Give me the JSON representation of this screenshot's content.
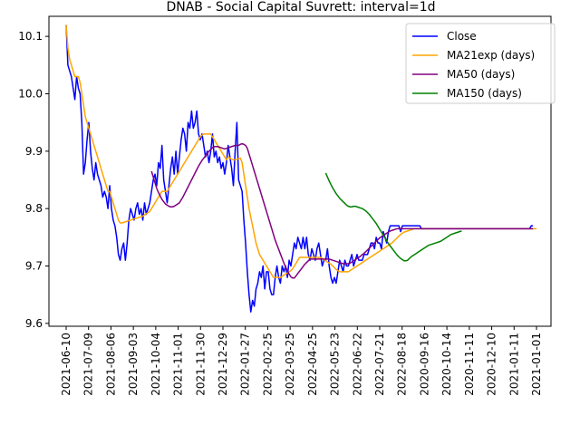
{
  "chart_data": {
    "type": "line",
    "title": "DNAB - Social Capital Suvrett: interval=1d",
    "xlabel": "",
    "ylabel": "",
    "ylim": [
      9.595,
      10.135
    ],
    "grid": false,
    "legend_position": "upper right",
    "x_tick_labels": [
      "2021-06-10",
      "2021-07-09",
      "2021-08-06",
      "2021-09-03",
      "2021-10-04",
      "2021-11-01",
      "2021-11-30",
      "2021-12-29",
      "2022-01-27",
      "2022-02-25",
      "2022-03-25",
      "2022-04-25",
      "2022-05-23",
      "2022-06-22",
      "2022-07-21",
      "2022-08-18",
      "2020-09-16",
      "2020-10-14",
      "2020-11-11",
      "2020-12-10",
      "2021-01-11",
      "2021-01-01"
    ],
    "y_ticks": [
      9.6,
      9.7,
      9.8,
      9.9,
      10.0,
      10.1
    ],
    "y_tick_labels": [
      "9.6",
      "9.7",
      "9.8",
      "9.9",
      "10.0",
      "10.1"
    ],
    "series": [
      {
        "name": "Close",
        "color": "#0000ff",
        "start": 0,
        "values": [
          10.12,
          10.05,
          10.04,
          10.03,
          10.01,
          9.99,
          10.03,
          10.01,
          10.0,
          9.95,
          9.86,
          9.88,
          9.92,
          9.95,
          9.9,
          9.87,
          9.85,
          9.88,
          9.86,
          9.85,
          9.84,
          9.82,
          9.83,
          9.82,
          9.8,
          9.84,
          9.8,
          9.78,
          9.77,
          9.75,
          9.72,
          9.71,
          9.73,
          9.74,
          9.71,
          9.74,
          9.78,
          9.8,
          9.79,
          9.78,
          9.8,
          9.81,
          9.79,
          9.8,
          9.78,
          9.81,
          9.79,
          9.8,
          9.81,
          9.83,
          9.85,
          9.86,
          9.84,
          9.88,
          9.87,
          9.91,
          9.85,
          9.83,
          9.81,
          9.84,
          9.87,
          9.89,
          9.86,
          9.9,
          9.86,
          9.89,
          9.92,
          9.94,
          9.93,
          9.9,
          9.95,
          9.94,
          9.97,
          9.94,
          9.95,
          9.97,
          9.93,
          9.92,
          9.93,
          9.91,
          9.89,
          9.9,
          9.88,
          9.9,
          9.93,
          9.89,
          9.9,
          9.88,
          9.89,
          9.87,
          9.88,
          9.86,
          9.88,
          9.91,
          9.89,
          9.87,
          9.84,
          9.9,
          9.95,
          9.85,
          9.84,
          9.83,
          9.78,
          9.74,
          9.69,
          9.65,
          9.62,
          9.64,
          9.63,
          9.66,
          9.67,
          9.69,
          9.68,
          9.7,
          9.66,
          9.69,
          9.69,
          9.66,
          9.65,
          9.65,
          9.68,
          9.7,
          9.68,
          9.67,
          9.7,
          9.69,
          9.7,
          9.68,
          9.71,
          9.7,
          9.72,
          9.74,
          9.73,
          9.75,
          9.74,
          9.73,
          9.75,
          9.73,
          9.75,
          9.72,
          9.71,
          9.73,
          9.72,
          9.71,
          9.73,
          9.74,
          9.72,
          9.7,
          9.71,
          9.71,
          9.73,
          9.7,
          9.68,
          9.67,
          9.68,
          9.67,
          9.69,
          9.71,
          9.7,
          9.69,
          9.71,
          9.7,
          9.7,
          9.71,
          9.72,
          9.7,
          9.71,
          9.72,
          9.71,
          9.71,
          9.71,
          9.72,
          9.72,
          9.72,
          9.73,
          9.74,
          9.74,
          9.73,
          9.75,
          9.74,
          9.74,
          9.73,
          9.76,
          9.75,
          9.74,
          9.76,
          9.77,
          9.77,
          9.77,
          9.77,
          9.77,
          9.77,
          9.76,
          9.77,
          9.77,
          9.77,
          9.77,
          9.77,
          9.77,
          9.77,
          9.77,
          9.77,
          9.77,
          9.77,
          9.765,
          9.765,
          9.765,
          9.765,
          9.765,
          9.765,
          9.765,
          9.765,
          9.765,
          9.765,
          9.765,
          9.765,
          9.765,
          9.765,
          9.765,
          9.765,
          9.765,
          9.765,
          9.765,
          9.765,
          9.765,
          9.765,
          9.765,
          9.765,
          9.765,
          9.765,
          9.765,
          9.765,
          9.765,
          9.765,
          9.765,
          9.765,
          9.765,
          9.765,
          9.765,
          9.765,
          9.765,
          9.765,
          9.765,
          9.765,
          9.765,
          9.765,
          9.765,
          9.765,
          9.765,
          9.765,
          9.765,
          9.765,
          9.765,
          9.765,
          9.765,
          9.765,
          9.765,
          9.765,
          9.765,
          9.765,
          9.765,
          9.765,
          9.765,
          9.765,
          9.765,
          9.765,
          9.765,
          9.77,
          9.77
        ]
      },
      {
        "name": "MA21exp (days)",
        "color": "#ffa500",
        "start": 0,
        "values": [
          10.12,
          10.08,
          10.06,
          10.05,
          10.04,
          10.03,
          10.03,
          10.03,
          10.02,
          10.0,
          9.98,
          9.96,
          9.95,
          9.94,
          9.93,
          9.92,
          9.91,
          9.9,
          9.89,
          9.88,
          9.87,
          9.86,
          9.85,
          9.84,
          9.83,
          9.83,
          9.82,
          9.81,
          9.8,
          9.79,
          9.78,
          9.775,
          9.775,
          9.776,
          9.777,
          9.778,
          9.779,
          9.78,
          9.781,
          9.782,
          9.783,
          9.784,
          9.785,
          9.786,
          9.787,
          9.789,
          9.791,
          9.793,
          9.795,
          9.8,
          9.805,
          9.81,
          9.815,
          9.82,
          9.825,
          9.83,
          9.83,
          9.83,
          9.83,
          9.835,
          9.84,
          9.845,
          9.85,
          9.855,
          9.86,
          9.865,
          9.87,
          9.875,
          9.88,
          9.885,
          9.89,
          9.895,
          9.9,
          9.905,
          9.91,
          9.915,
          9.92,
          9.925,
          9.928,
          9.93,
          9.93,
          9.93,
          9.93,
          9.93,
          9.925,
          9.92,
          9.915,
          9.91,
          9.905,
          9.9,
          9.895,
          9.89,
          9.885,
          9.89,
          9.888,
          9.886,
          9.885,
          9.885,
          9.886,
          9.887,
          9.888,
          9.88,
          9.86,
          9.84,
          9.82,
          9.8,
          9.785,
          9.77,
          9.755,
          9.74,
          9.73,
          9.72,
          9.715,
          9.71,
          9.705,
          9.7,
          9.695,
          9.69,
          9.685,
          9.68,
          9.68,
          9.68,
          9.68,
          9.68,
          9.682,
          9.684,
          9.686,
          9.688,
          9.69,
          9.692,
          9.695,
          9.7,
          9.705,
          9.71,
          9.715,
          9.715,
          9.715,
          9.715,
          9.715,
          9.715,
          9.715,
          9.715,
          9.715,
          9.715,
          9.715,
          9.715,
          9.715,
          9.713,
          9.711,
          9.709,
          9.707,
          9.705,
          9.703,
          9.7,
          9.697,
          9.694,
          9.692,
          9.69,
          9.69,
          9.69,
          9.69,
          9.69,
          9.69,
          9.692,
          9.694,
          9.696,
          9.698,
          9.7,
          9.702,
          9.704,
          9.706,
          9.708,
          9.71,
          9.712,
          9.714,
          9.716,
          9.718,
          9.72,
          9.722,
          9.724,
          9.726,
          9.728,
          9.73,
          9.732,
          9.734,
          9.736,
          9.738,
          9.74,
          9.743,
          9.746,
          9.749,
          9.752,
          9.755,
          9.757,
          9.759,
          9.76,
          9.761,
          9.762,
          9.763,
          9.764,
          9.765,
          9.765,
          9.765,
          9.765,
          9.765,
          9.765,
          9.765,
          9.765,
          9.765,
          9.765,
          9.765,
          9.765,
          9.765,
          9.765,
          9.765,
          9.765,
          9.765,
          9.765,
          9.765,
          9.765,
          9.765,
          9.765,
          9.765,
          9.765,
          9.765,
          9.765,
          9.765,
          9.765,
          9.765,
          9.765,
          9.765,
          9.765,
          9.765,
          9.765,
          9.765,
          9.765,
          9.765,
          9.765,
          9.765,
          9.765,
          9.765,
          9.765,
          9.765,
          9.765,
          9.765,
          9.765,
          9.765,
          9.765,
          9.765,
          9.765,
          9.765,
          9.765,
          9.765,
          9.765,
          9.765,
          9.765,
          9.765,
          9.765,
          9.765,
          9.765,
          9.765,
          9.765,
          9.765,
          9.765,
          9.765,
          9.765,
          9.765,
          9.765,
          9.765,
          9.765,
          9.765
        ]
      },
      {
        "name": "MA50 (days)",
        "color": "#800080",
        "start": 49,
        "values": [
          9.865,
          9.855,
          9.845,
          9.835,
          9.828,
          9.822,
          9.816,
          9.812,
          9.808,
          9.806,
          9.804,
          9.803,
          9.803,
          9.804,
          9.806,
          9.808,
          9.81,
          9.815,
          9.82,
          9.826,
          9.832,
          9.838,
          9.844,
          9.85,
          9.856,
          9.862,
          9.868,
          9.874,
          9.879,
          9.884,
          9.888,
          9.892,
          9.896,
          9.9,
          9.903,
          9.906,
          9.908,
          9.908,
          9.908,
          9.907,
          9.906,
          9.905,
          9.904,
          9.905,
          9.906,
          9.907,
          9.908,
          9.909,
          9.91,
          9.91,
          9.91,
          9.912,
          9.913,
          9.912,
          9.91,
          9.905,
          9.895,
          9.885,
          9.875,
          9.865,
          9.855,
          9.845,
          9.835,
          9.825,
          9.815,
          9.805,
          9.795,
          9.785,
          9.775,
          9.765,
          9.755,
          9.745,
          9.737,
          9.729,
          9.721,
          9.713,
          9.705,
          9.698,
          9.692,
          9.686,
          9.681,
          9.679,
          9.679,
          9.683,
          9.687,
          9.691,
          9.695,
          9.699,
          9.703,
          9.706,
          9.709,
          9.712,
          9.712,
          9.712,
          9.712,
          9.712,
          9.712,
          9.712,
          9.712,
          9.712,
          9.712,
          9.712,
          9.712,
          9.711,
          9.71,
          9.709,
          9.708,
          9.707,
          9.706,
          9.705,
          9.704,
          9.704,
          9.704,
          9.704,
          9.705,
          9.707,
          9.709,
          9.711,
          9.713,
          9.715,
          9.717,
          9.72,
          9.722,
          9.725,
          9.728,
          9.731,
          9.734,
          9.737,
          9.74,
          9.743,
          9.746,
          9.749,
          9.751,
          9.753,
          9.755,
          9.757,
          9.759,
          9.761,
          9.762,
          9.763,
          9.764,
          9.765,
          9.765,
          9.765,
          9.765,
          9.765,
          9.765,
          9.765,
          9.765,
          9.765,
          9.765,
          9.765,
          9.765,
          9.765,
          9.765,
          9.765,
          9.765,
          9.765,
          9.765,
          9.765,
          9.765,
          9.765,
          9.765,
          9.765,
          9.765,
          9.765,
          9.765,
          9.765,
          9.765,
          9.765,
          9.765,
          9.765,
          9.765,
          9.765,
          9.765,
          9.765,
          9.765,
          9.765,
          9.765,
          9.765,
          9.765,
          9.765,
          9.765,
          9.765,
          9.765,
          9.765,
          9.765,
          9.765,
          9.765,
          9.765,
          9.765,
          9.765,
          9.765,
          9.765,
          9.765,
          9.765,
          9.765,
          9.765,
          9.765,
          9.765,
          9.765,
          9.765,
          9.765,
          9.765,
          9.765,
          9.765,
          9.765,
          9.765,
          9.765,
          9.765,
          9.765,
          9.765,
          9.765,
          9.765,
          9.765,
          9.765,
          9.765,
          9.765,
          9.765,
          9.765
        ]
      },
      {
        "name": "MA150 (days)",
        "color": "#008000",
        "start": 149,
        "values": [
          9.862,
          9.855,
          9.848,
          9.842,
          9.836,
          9.831,
          9.826,
          9.822,
          9.818,
          9.815,
          9.812,
          9.809,
          9.806,
          9.804,
          9.803,
          9.803,
          9.804,
          9.804,
          9.803,
          9.802,
          9.801,
          9.8,
          9.798,
          9.796,
          9.793,
          9.79,
          9.786,
          9.782,
          9.778,
          9.774,
          9.769,
          9.764,
          9.759,
          9.754,
          9.749,
          9.744,
          9.739,
          9.735,
          9.731,
          9.727,
          9.723,
          9.719,
          9.716,
          9.713,
          9.711,
          9.709,
          9.709,
          9.71,
          9.713,
          9.716,
          9.718,
          9.72,
          9.722,
          9.724,
          9.726,
          9.728,
          9.73,
          9.732,
          9.734,
          9.736,
          9.737,
          9.738,
          9.739,
          9.74,
          9.741,
          9.742,
          9.743,
          9.745,
          9.747,
          9.749,
          9.751,
          9.753,
          9.755,
          9.756,
          9.757,
          9.758,
          9.759,
          9.76,
          9.761
        ]
      }
    ]
  }
}
